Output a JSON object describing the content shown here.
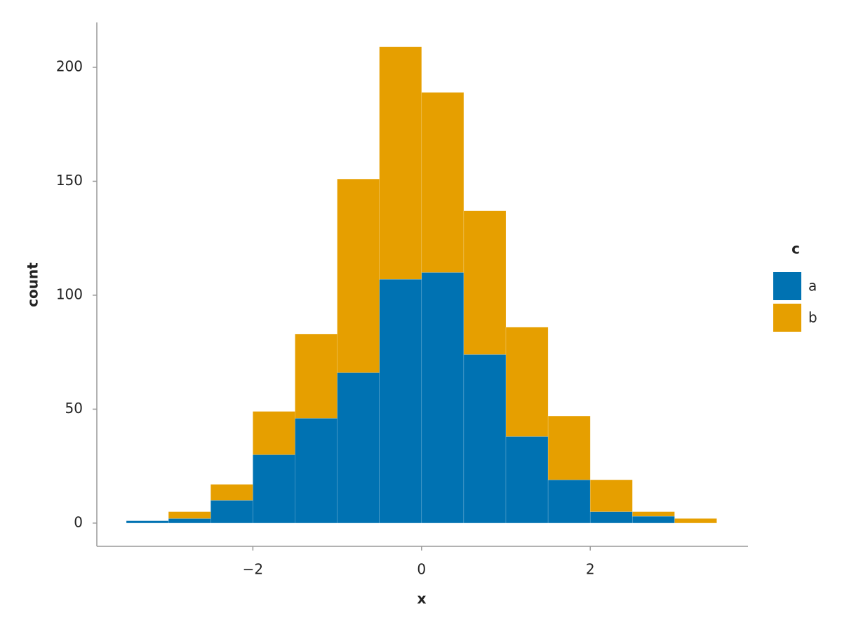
{
  "chart_data": {
    "type": "histogram",
    "x_label": "x",
    "y_label": "count",
    "legend_title": "c",
    "bins": [
      -3.5,
      -3,
      -2.5,
      -2,
      -1.5,
      -1,
      -0.5,
      0,
      0.5,
      1,
      1.5,
      2,
      2.5,
      3,
      3.5
    ],
    "stacked": true,
    "series": [
      {
        "name": "a",
        "color": "#0072b2",
        "values": [
          1,
          2,
          10,
          30,
          46,
          66,
          107,
          110,
          74,
          38,
          19,
          5,
          3,
          0
        ]
      },
      {
        "name": "b",
        "color": "#e69f00",
        "values": [
          0,
          3,
          7,
          19,
          37,
          85,
          102,
          79,
          63,
          48,
          28,
          14,
          2,
          2
        ]
      }
    ],
    "xlim": [
      -3.85,
      3.87
    ],
    "ylim": [
      -10.2,
      219.7
    ],
    "xticks": [
      {
        "value": -2,
        "label": "−2"
      },
      0,
      2
    ],
    "yticks": [
      0,
      50,
      100,
      150,
      200
    ],
    "grid": false,
    "legend": "right"
  }
}
